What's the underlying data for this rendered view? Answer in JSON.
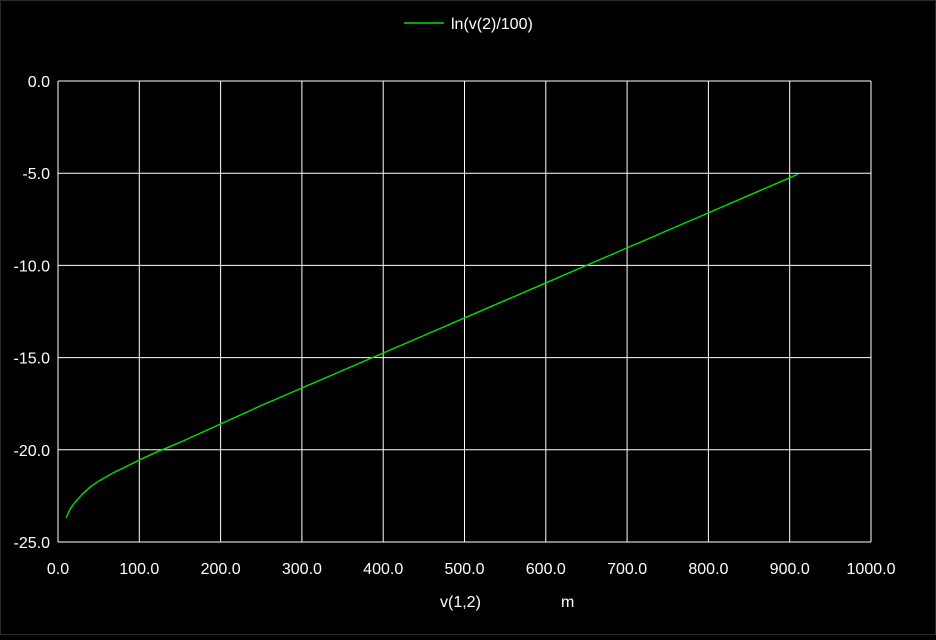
{
  "chart_data": {
    "type": "line",
    "legend_placement": "top-center",
    "grid": true,
    "colors": {
      "background": "#000000",
      "grid": "#ffffff",
      "text": "#ffffff",
      "series": "#00e000"
    },
    "xlabel": "v(1,2)",
    "xunit": "m",
    "ylabel": "",
    "xlim": [
      0,
      1000
    ],
    "ylim": [
      -25,
      0
    ],
    "xticks": [
      0,
      100,
      200,
      300,
      400,
      500,
      600,
      700,
      800,
      900,
      1000
    ],
    "yticks": [
      0,
      -5,
      -10,
      -15,
      -20,
      -25
    ],
    "xtick_labels": [
      "0.0",
      "100.0",
      "200.0",
      "300.0",
      "400.0",
      "500.0",
      "600.0",
      "700.0",
      "800.0",
      "900.0",
      "1000.0"
    ],
    "ytick_labels": [
      "0.0",
      "-5.0",
      "-10.0",
      "-15.0",
      "-20.0",
      "-25.0"
    ],
    "series": [
      {
        "name": "ln(v(2)/100)",
        "color": "#00e000",
        "x": [
          10,
          15,
          20,
          30,
          40,
          50,
          60,
          70,
          80,
          100,
          120,
          150,
          200,
          250,
          300,
          350,
          400,
          450,
          500,
          550,
          600,
          650,
          700,
          750,
          800,
          850,
          900,
          910
        ],
        "y": [
          -23.7,
          -23.2,
          -22.9,
          -22.4,
          -22.0,
          -21.7,
          -21.45,
          -21.2,
          -21.0,
          -20.55,
          -20.15,
          -19.6,
          -18.6,
          -17.6,
          -16.65,
          -15.7,
          -14.75,
          -13.8,
          -12.85,
          -11.9,
          -10.95,
          -10.0,
          -9.05,
          -8.1,
          -7.15,
          -6.2,
          -5.25,
          -5.05
        ]
      }
    ]
  }
}
